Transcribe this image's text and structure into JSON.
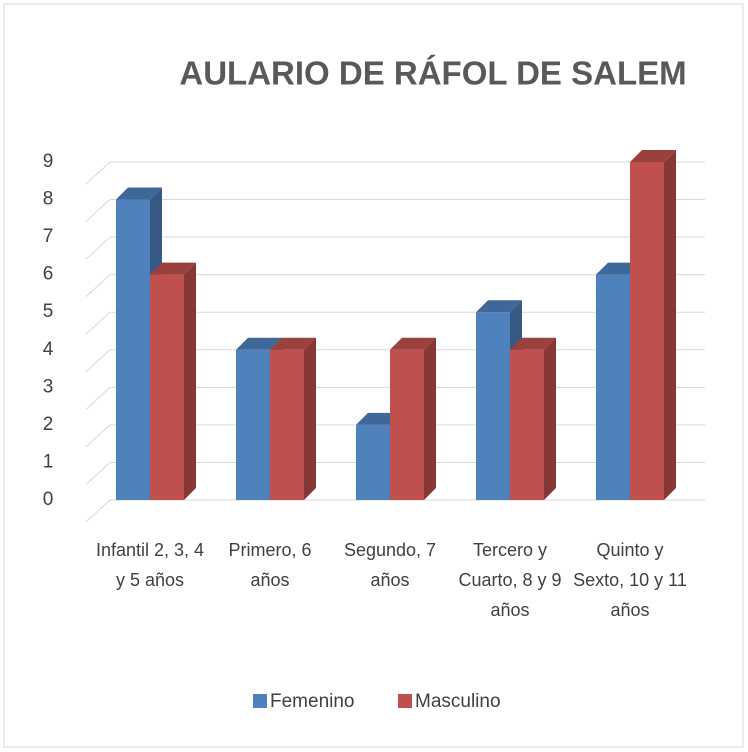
{
  "chart_data": {
    "type": "bar3d",
    "title": "AULARIO DE RÁFOL DE SALEM",
    "categories": [
      "Infantil 2, 3, 4 y 5 años",
      "Primero, 6 años",
      "Segundo, 7 años",
      "Tercero y Cuarto, 8 y 9 años",
      "Quinto y Sexto, 10 y 11 años"
    ],
    "series": [
      {
        "name": "Femenino",
        "color": "#4f81bd",
        "values": [
          8,
          4,
          2,
          5,
          6
        ]
      },
      {
        "name": "Masculino",
        "color": "#c0504d",
        "values": [
          6,
          4,
          4,
          4,
          9
        ]
      }
    ],
    "ylim": [
      0,
      9
    ],
    "yticks": [
      0,
      1,
      2,
      3,
      4,
      5,
      6,
      7,
      8,
      9
    ],
    "grid": true,
    "legend": "bottom"
  }
}
